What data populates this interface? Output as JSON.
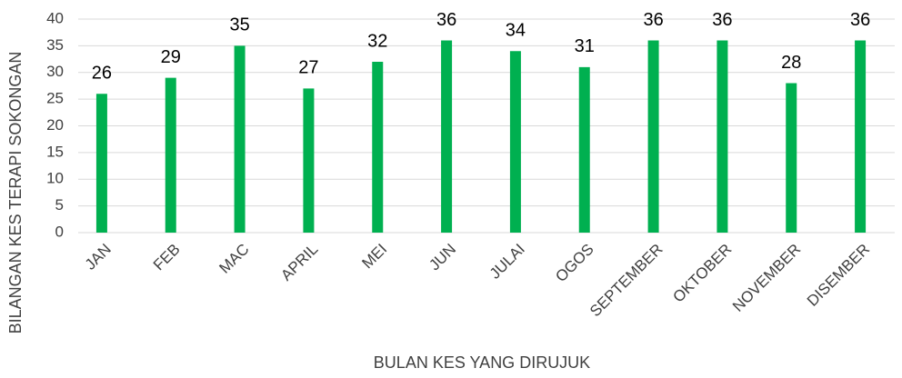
{
  "chart_data": {
    "type": "bar",
    "x_label": "BULAN KES YANG DIRUJUK",
    "y_label": "BILANGAN KES TERAPI SOKONGAN",
    "categories": [
      "JAN",
      "FEB",
      "MAC",
      "APRIL",
      "MEI",
      "JUN",
      "JULAI",
      "OGOS",
      "SEPTEMBER",
      "OKTOBER",
      "NOVEMBER",
      "DISEMBER"
    ],
    "values": [
      26,
      29,
      35,
      27,
      32,
      36,
      34,
      31,
      36,
      36,
      28,
      36
    ],
    "color": "#00b050",
    "ylim": [
      0,
      40
    ],
    "yticks": [
      0,
      5,
      10,
      15,
      20,
      25,
      30,
      35,
      40
    ],
    "grid": true
  }
}
